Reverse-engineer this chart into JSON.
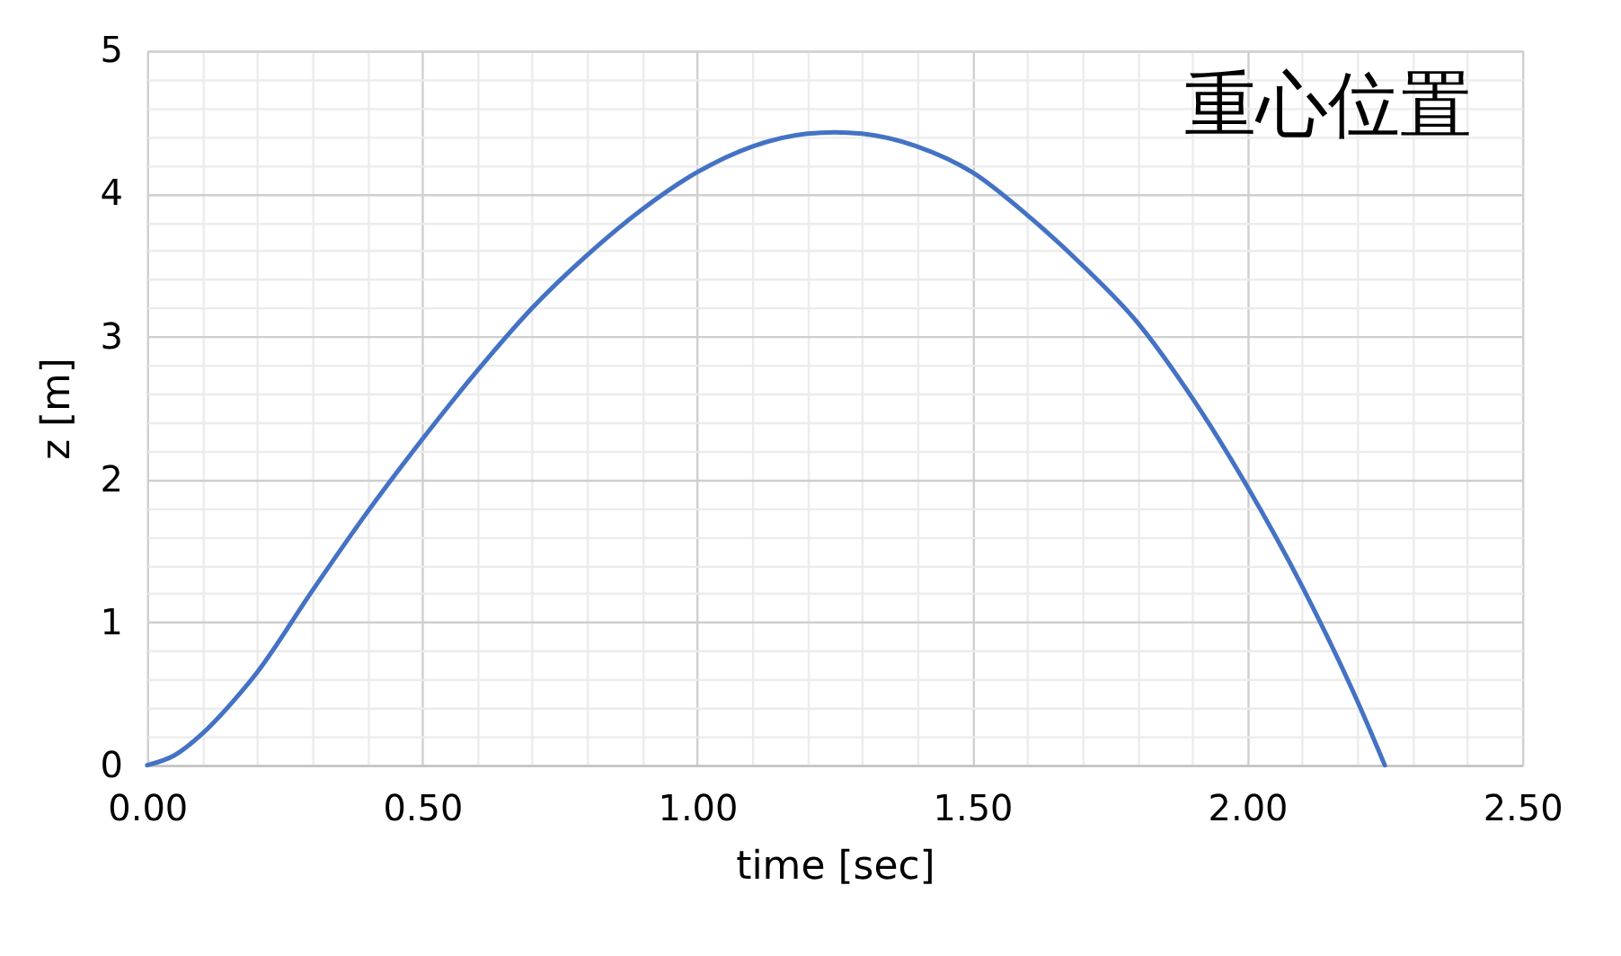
{
  "chart_data": {
    "type": "line",
    "xlabel": "time [sec]",
    "ylabel": "z [m]",
    "annotations": [
      "重心位置"
    ],
    "x": [
      0,
      0.05,
      0.1,
      0.15,
      0.2,
      0.3,
      0.4,
      0.5,
      0.6,
      0.7,
      0.8,
      0.9,
      1.0,
      1.1,
      1.2,
      1.25,
      1.3,
      1.4,
      1.5,
      1.6,
      1.7,
      1.8,
      1.9,
      2.0,
      2.1,
      2.2,
      2.25
    ],
    "series": [
      {
        "color": "#4472c4",
        "values": [
          0,
          0.07,
          0.22,
          0.42,
          0.65,
          1.22,
          1.77,
          2.28,
          2.76,
          3.2,
          3.57,
          3.89,
          4.15,
          4.33,
          4.42,
          4.43,
          4.42,
          4.33,
          4.15,
          3.85,
          3.5,
          3.1,
          2.57,
          1.95,
          1.25,
          0.45,
          0
        ]
      }
    ],
    "xlim": [
      0,
      2.5
    ],
    "xticks": [
      {
        "value": 0,
        "label": "0.00"
      },
      {
        "value": 0.1,
        "label": null
      },
      {
        "value": 0.2,
        "label": null
      },
      {
        "value": 0.3,
        "label": null
      },
      {
        "value": 0.4,
        "label": null
      },
      {
        "value": 0.5,
        "label": "0.50"
      },
      {
        "value": 0.6,
        "label": null
      },
      {
        "value": 0.7,
        "label": null
      },
      {
        "value": 0.8,
        "label": null
      },
      {
        "value": 0.9,
        "label": null
      },
      {
        "value": 1.0,
        "label": "1.00"
      },
      {
        "value": 1.1,
        "label": null
      },
      {
        "value": 1.2,
        "label": null
      },
      {
        "value": 1.3,
        "label": null
      },
      {
        "value": 1.4,
        "label": null
      },
      {
        "value": 1.5,
        "label": "1.50"
      },
      {
        "value": 1.6,
        "label": null
      },
      {
        "value": 1.7,
        "label": null
      },
      {
        "value": 1.8,
        "label": null
      },
      {
        "value": 1.9,
        "label": null
      },
      {
        "value": 2.0,
        "label": "2.00"
      },
      {
        "value": 2.1,
        "label": null
      },
      {
        "value": 2.2,
        "label": null
      },
      {
        "value": 2.3,
        "label": null
      },
      {
        "value": 2.4,
        "label": null
      },
      {
        "value": 2.5,
        "label": "2.50"
      }
    ],
    "ylim": [
      0,
      5
    ],
    "yticks": [
      0,
      {
        "value": 0.2,
        "label": null
      },
      {
        "value": 0.4,
        "label": null
      },
      {
        "value": 0.6,
        "label": null
      },
      {
        "value": 0.8,
        "label": null
      },
      1,
      {
        "value": 1.2,
        "label": null
      },
      {
        "value": 1.4,
        "label": null
      },
      {
        "value": 1.6,
        "label": null
      },
      {
        "value": 1.8,
        "label": null
      },
      2,
      {
        "value": 2.2,
        "label": null
      },
      {
        "value": 2.4,
        "label": null
      },
      {
        "value": 2.6,
        "label": null
      },
      {
        "value": 2.8,
        "label": null
      },
      3,
      {
        "value": 3.2,
        "label": null
      },
      {
        "value": 3.4,
        "label": null
      },
      {
        "value": 3.6,
        "label": null
      },
      {
        "value": 3.8,
        "label": null
      },
      4,
      {
        "value": 4.2,
        "label": null
      },
      {
        "value": 4.4,
        "label": null
      },
      {
        "value": 4.6,
        "label": null
      },
      {
        "value": 4.8,
        "label": null
      },
      5
    ],
    "grid": true,
    "marker": "none",
    "line_style": "solid",
    "legend": false
  }
}
